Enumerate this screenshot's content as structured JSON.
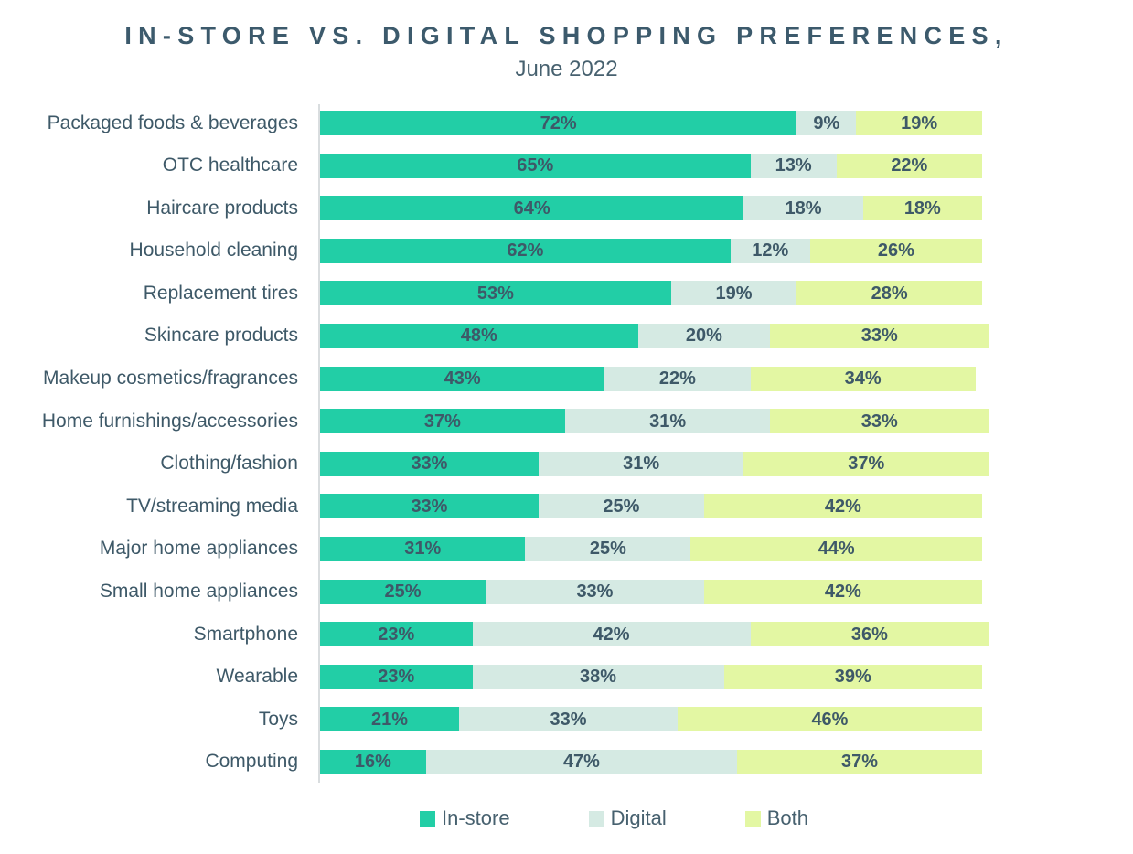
{
  "header": {
    "title": "IN-STORE VS. DIGITAL SHOPPING PREFERENCES,",
    "subtitle": "June 2022"
  },
  "chart_data": {
    "type": "bar",
    "orientation": "horizontal",
    "stacked": true,
    "grid": false,
    "legend_position": "bottom",
    "xlim": [
      0,
      100
    ],
    "value_suffix": "%",
    "label_color": "#3E5968",
    "axis_line_color": "#D9DDDF",
    "categories": [
      "Packaged foods & beverages",
      "OTC healthcare",
      "Haircare products",
      "Household cleaning",
      "Replacement tires",
      "Skincare products",
      "Makeup cosmetics/fragrances",
      "Home furnishings/accessories",
      "Clothing/fashion",
      "TV/streaming media",
      "Major home appliances",
      "Small home appliances",
      "Smartphone",
      "Wearable",
      "Toys",
      "Computing"
    ],
    "series": [
      {
        "name": "In-store",
        "color": "#22CEA6",
        "values": [
          72,
          65,
          64,
          62,
          53,
          48,
          43,
          37,
          33,
          33,
          31,
          25,
          23,
          23,
          21,
          16
        ]
      },
      {
        "name": "Digital",
        "color": "#D5EAE3",
        "values": [
          9,
          13,
          18,
          12,
          19,
          20,
          22,
          31,
          31,
          25,
          25,
          33,
          42,
          38,
          33,
          47
        ]
      },
      {
        "name": "Both",
        "color": "#E3F7A3",
        "values": [
          19,
          22,
          18,
          26,
          28,
          33,
          34,
          33,
          37,
          42,
          44,
          42,
          36,
          39,
          46,
          37
        ]
      }
    ]
  }
}
